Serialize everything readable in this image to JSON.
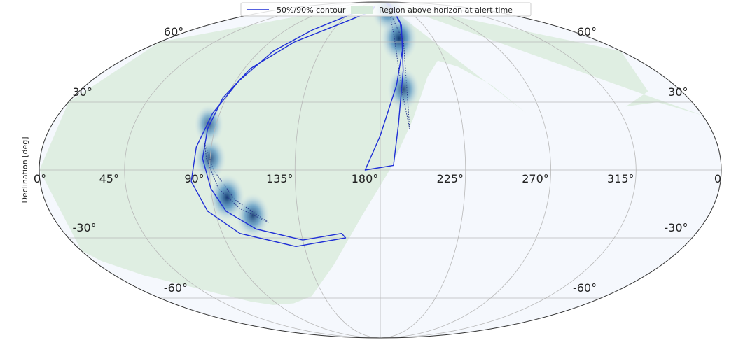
{
  "chart_data": {
    "type": "skymap",
    "projection": "mollweide",
    "title": "",
    "xlabel": "",
    "ylabel": "Declination [deg]",
    "grid": true,
    "legend_placement": "top-center",
    "ra_range": [
      0,
      360
    ],
    "dec_range": [
      -90,
      90
    ],
    "ra_ticks": [
      {
        "ra": 315,
        "label": "315°"
      },
      {
        "ra": 270,
        "label": "270°"
      },
      {
        "ra": 225,
        "label": "225°"
      },
      {
        "ra": 180,
        "label": "180°"
      },
      {
        "ra": 135,
        "label": "135°"
      },
      {
        "ra": 90,
        "label": "90°"
      },
      {
        "ra": 45,
        "label": "45°"
      }
    ],
    "ra_edge_labels": {
      "left": "0°",
      "right": "0"
    },
    "dec_ticks": [
      {
        "dec": 60,
        "label": "60°"
      },
      {
        "dec": 30,
        "label": "30°"
      },
      {
        "dec": 0,
        "label": ""
      },
      {
        "dec": -30,
        "label": "-30°"
      },
      {
        "dec": -60,
        "label": "-60°"
      }
    ],
    "legend": [
      {
        "label": "50%/90% contour",
        "color": "#1f2fd6"
      },
      {
        "label": "Region above horizon at alert time",
        "color": "#d7ebdb"
      }
    ],
    "horizon_region": {
      "color": "#dfeee2",
      "boundary_east_ra": [
        38,
        20,
        5,
        0,
        355,
        340,
        320,
        300,
        280,
        262
      ],
      "boundary_east_dec": [
        -53,
        -48,
        -41,
        -36,
        -30,
        -19,
        -6,
        5,
        16,
        25
      ],
      "boundary_west_ra": [
        262,
        248,
        232,
        220,
        210,
        198,
        185,
        170,
        150,
        125,
        105,
        85,
        70,
        55,
        38
      ],
      "boundary_west_dec": [
        25,
        38,
        47,
        50,
        42,
        22,
        0,
        -20,
        -43,
        -59,
        -63,
        -64,
        -62,
        -58,
        -53
      ]
    },
    "contour_90": {
      "color": "#1f2fd6",
      "arc_north": {
        "outer_ra": [
          172,
          180,
          190,
          198,
          202,
          204,
          206
        ],
        "outer_dec": [
          0,
          15,
          38,
          58,
          72,
          82,
          88
        ],
        "inner_ra": [
          209,
          202,
          195,
          190,
          187
        ],
        "inner_dec": [
          86,
          70,
          45,
          20,
          2
        ]
      },
      "arc_south": {
        "outer_ra": [
          168,
          140,
          115,
          100,
          92,
          86,
          82,
          80,
          86,
          100,
          130,
          160
        ],
        "outer_dec": [
          84,
          78,
          67,
          55,
          40,
          25,
          10,
          -5,
          -18,
          -28,
          -34,
          -30
        ],
        "inner_ra": [
          158,
          135,
          110,
          96,
          90,
          86,
          86,
          88,
          94,
          110,
          140,
          166
        ],
        "inner_dec": [
          -28,
          -31,
          -26,
          -18,
          -8,
          5,
          18,
          32,
          46,
          60,
          72,
          80
        ]
      }
    },
    "contour_50": {
      "color": "#2a3a8c",
      "style": "dotted",
      "blobs": [
        {
          "ra": [
            196,
            193,
            192,
            195,
            199
          ],
          "dec": [
            18,
            35,
            62,
            80,
            60
          ]
        },
        {
          "ra": [
            118,
            104,
            94,
            88,
            86,
            92,
            102
          ],
          "dec": [
            -23,
            -17,
            -8,
            5,
            12,
            0,
            -13
          ]
        }
      ]
    },
    "probability_peaks": [
      {
        "ra": 196,
        "dec": 62,
        "intensity": 1.0
      },
      {
        "ra": 194,
        "dec": 36,
        "intensity": 0.7
      },
      {
        "ra": 195,
        "dec": 82,
        "intensity": 0.85
      },
      {
        "ra": 98,
        "dec": -12,
        "intensity": 0.95
      },
      {
        "ra": 110,
        "dec": -20,
        "intensity": 0.8
      },
      {
        "ra": 90,
        "dec": 5,
        "intensity": 0.7
      },
      {
        "ra": 86,
        "dec": 20,
        "intensity": 0.5
      }
    ],
    "colormap": {
      "low": "#f7fbff",
      "high": "#08306b"
    }
  }
}
